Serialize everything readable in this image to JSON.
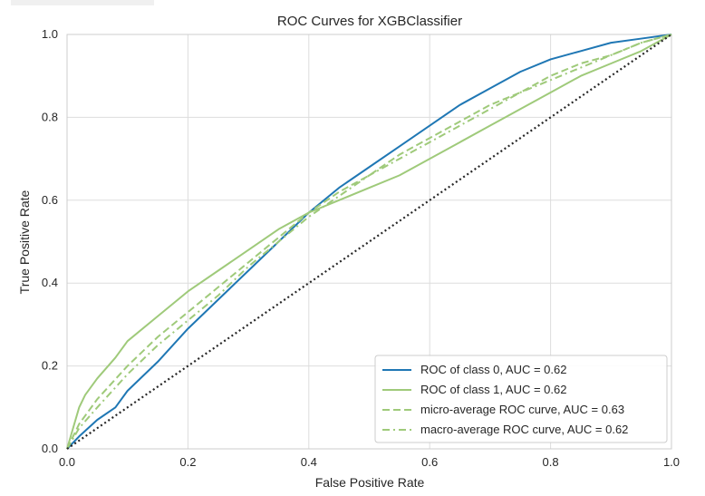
{
  "chart_data": {
    "type": "line",
    "title": "ROC Curves for XGBClassifier",
    "xlabel": "False Positive Rate",
    "ylabel": "True Positive Rate",
    "xlim": [
      0.0,
      1.0
    ],
    "ylim": [
      0.0,
      1.0
    ],
    "xticks": [
      "0.0",
      "0.2",
      "0.4",
      "0.6",
      "0.8",
      "1.0"
    ],
    "yticks": [
      "0.0",
      "0.2",
      "0.4",
      "0.6",
      "0.8",
      "1.0"
    ],
    "grid": true,
    "legend_position": "lower-right",
    "series": [
      {
        "name": "ROC of class 0, AUC = 0.62",
        "color": "#1f77b4",
        "style": "solid",
        "x": [
          0.0,
          0.02,
          0.05,
          0.08,
          0.1,
          0.15,
          0.2,
          0.25,
          0.3,
          0.35,
          0.4,
          0.45,
          0.5,
          0.55,
          0.6,
          0.65,
          0.7,
          0.75,
          0.8,
          0.85,
          0.9,
          0.95,
          1.0
        ],
        "y": [
          0.0,
          0.03,
          0.07,
          0.1,
          0.14,
          0.21,
          0.29,
          0.36,
          0.43,
          0.5,
          0.57,
          0.63,
          0.68,
          0.73,
          0.78,
          0.83,
          0.87,
          0.91,
          0.94,
          0.96,
          0.98,
          0.99,
          1.0
        ]
      },
      {
        "name": "ROC of class 1, AUC = 0.62",
        "color": "#9fca7a",
        "style": "solid",
        "x": [
          0.0,
          0.01,
          0.02,
          0.03,
          0.05,
          0.08,
          0.1,
          0.15,
          0.2,
          0.25,
          0.3,
          0.35,
          0.4,
          0.45,
          0.5,
          0.55,
          0.6,
          0.65,
          0.7,
          0.75,
          0.8,
          0.85,
          0.9,
          0.95,
          1.0
        ],
        "y": [
          0.0,
          0.05,
          0.1,
          0.13,
          0.17,
          0.22,
          0.26,
          0.32,
          0.38,
          0.43,
          0.48,
          0.53,
          0.57,
          0.6,
          0.63,
          0.66,
          0.7,
          0.74,
          0.78,
          0.82,
          0.86,
          0.9,
          0.93,
          0.96,
          1.0
        ]
      },
      {
        "name": "micro-average ROC curve, AUC = 0.63",
        "color": "#9fca7a",
        "style": "dashed",
        "x": [
          0.0,
          0.02,
          0.05,
          0.1,
          0.15,
          0.2,
          0.25,
          0.3,
          0.35,
          0.4,
          0.45,
          0.5,
          0.55,
          0.6,
          0.65,
          0.7,
          0.75,
          0.8,
          0.85,
          0.9,
          0.95,
          1.0
        ],
        "y": [
          0.0,
          0.06,
          0.12,
          0.2,
          0.27,
          0.33,
          0.39,
          0.45,
          0.51,
          0.57,
          0.62,
          0.66,
          0.71,
          0.75,
          0.79,
          0.83,
          0.86,
          0.9,
          0.93,
          0.95,
          0.98,
          1.0
        ]
      },
      {
        "name": "macro-average ROC curve, AUC = 0.62",
        "color": "#9fca7a",
        "style": "dashdot",
        "x": [
          0.0,
          0.02,
          0.05,
          0.1,
          0.15,
          0.2,
          0.25,
          0.3,
          0.35,
          0.4,
          0.45,
          0.5,
          0.55,
          0.6,
          0.65,
          0.7,
          0.75,
          0.8,
          0.85,
          0.9,
          0.95,
          1.0
        ],
        "y": [
          0.0,
          0.05,
          0.1,
          0.18,
          0.25,
          0.31,
          0.37,
          0.44,
          0.5,
          0.56,
          0.61,
          0.66,
          0.7,
          0.74,
          0.78,
          0.82,
          0.86,
          0.89,
          0.92,
          0.95,
          0.98,
          1.0
        ]
      },
      {
        "name": "",
        "color": "#262626",
        "style": "dotted",
        "x": [
          0.0,
          1.0
        ],
        "y": [
          0.0,
          1.0
        ]
      }
    ]
  }
}
